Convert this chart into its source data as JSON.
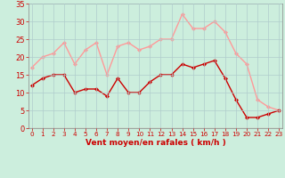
{
  "x": [
    0,
    1,
    2,
    3,
    4,
    5,
    6,
    7,
    8,
    9,
    10,
    11,
    12,
    13,
    14,
    15,
    16,
    17,
    18,
    19,
    20,
    21,
    22,
    23
  ],
  "wind_avg": [
    12,
    14,
    15,
    15,
    10,
    11,
    11,
    9,
    14,
    10,
    10,
    13,
    15,
    15,
    18,
    17,
    18,
    19,
    14,
    8,
    3,
    3,
    4,
    5
  ],
  "wind_gust": [
    17,
    20,
    21,
    24,
    18,
    22,
    24,
    15,
    23,
    24,
    22,
    23,
    25,
    25,
    32,
    28,
    28,
    30,
    27,
    21,
    18,
    8,
    6,
    5
  ],
  "xlabel": "Vent moyen/en rafales ( km/h )",
  "xlim_min": -0.3,
  "xlim_max": 23.3,
  "ylim_min": 0,
  "ylim_max": 35,
  "yticks": [
    0,
    5,
    10,
    15,
    20,
    25,
    30,
    35
  ],
  "xticks": [
    0,
    1,
    2,
    3,
    4,
    5,
    6,
    7,
    8,
    9,
    10,
    11,
    12,
    13,
    14,
    15,
    16,
    17,
    18,
    19,
    20,
    21,
    22,
    23
  ],
  "color_avg": "#cc0000",
  "color_gust": "#ff9999",
  "bg_color": "#cceedd",
  "grid_color": "#b0cccc",
  "spine_color": "#888888",
  "tick_color": "#cc0000",
  "xlabel_color": "#cc0000",
  "xlabel_fontsize": 6.5,
  "ytick_fontsize": 6.0,
  "xtick_fontsize": 5.2,
  "linewidth": 1.0,
  "markersize": 2.2
}
